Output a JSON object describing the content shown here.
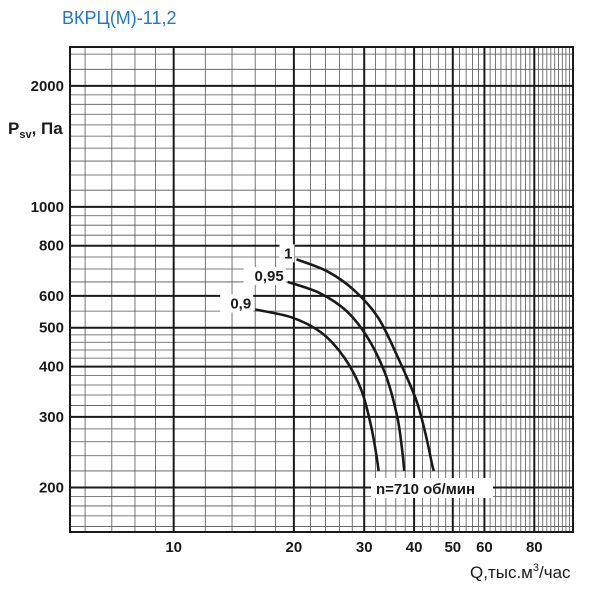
{
  "chart_data": {
    "type": "line",
    "title": "ВКРЦ(М)-11,2",
    "xlabel_prefix": "Q,тыс.м",
    "xlabel_sup": "3",
    "xlabel_suffix": "/час",
    "ylabel_main": "P",
    "ylabel_sub": "sv",
    "ylabel_unit": ", Па",
    "x_scale": "log",
    "y_scale": "log",
    "xlim": [
      5.5,
      100
    ],
    "ylim": [
      155,
      2500
    ],
    "x_ticks": [
      10,
      20,
      30,
      40,
      50,
      60,
      80
    ],
    "y_ticks": [
      200,
      300,
      400,
      500,
      600,
      800,
      1000,
      2000
    ],
    "grid": true,
    "annotation": "n=710 об/мин",
    "series": [
      {
        "name": "1",
        "color": "#1a1a1a",
        "points": [
          [
            20.3,
            740
          ],
          [
            24.3,
            690
          ],
          [
            28.3,
            620
          ],
          [
            32.5,
            530
          ],
          [
            36.5,
            420
          ],
          [
            40.5,
            330
          ],
          [
            42.8,
            270
          ],
          [
            44.3,
            230
          ],
          [
            44.8,
            220
          ]
        ]
      },
      {
        "name": "0,95",
        "color": "#1a1a1a",
        "points": [
          [
            19.3,
            650
          ],
          [
            23.2,
            610
          ],
          [
            27.1,
            550
          ],
          [
            30.7,
            470
          ],
          [
            34.0,
            380
          ],
          [
            36.3,
            300
          ],
          [
            37.3,
            250
          ],
          [
            37.8,
            220
          ]
        ]
      },
      {
        "name": "0,9",
        "color": "#1a1a1a",
        "points": [
          [
            16.0,
            555
          ],
          [
            19.8,
            530
          ],
          [
            23.5,
            485
          ],
          [
            26.8,
            420
          ],
          [
            29.5,
            350
          ],
          [
            31.2,
            285
          ],
          [
            32.2,
            240
          ],
          [
            32.6,
            220
          ]
        ]
      }
    ]
  }
}
